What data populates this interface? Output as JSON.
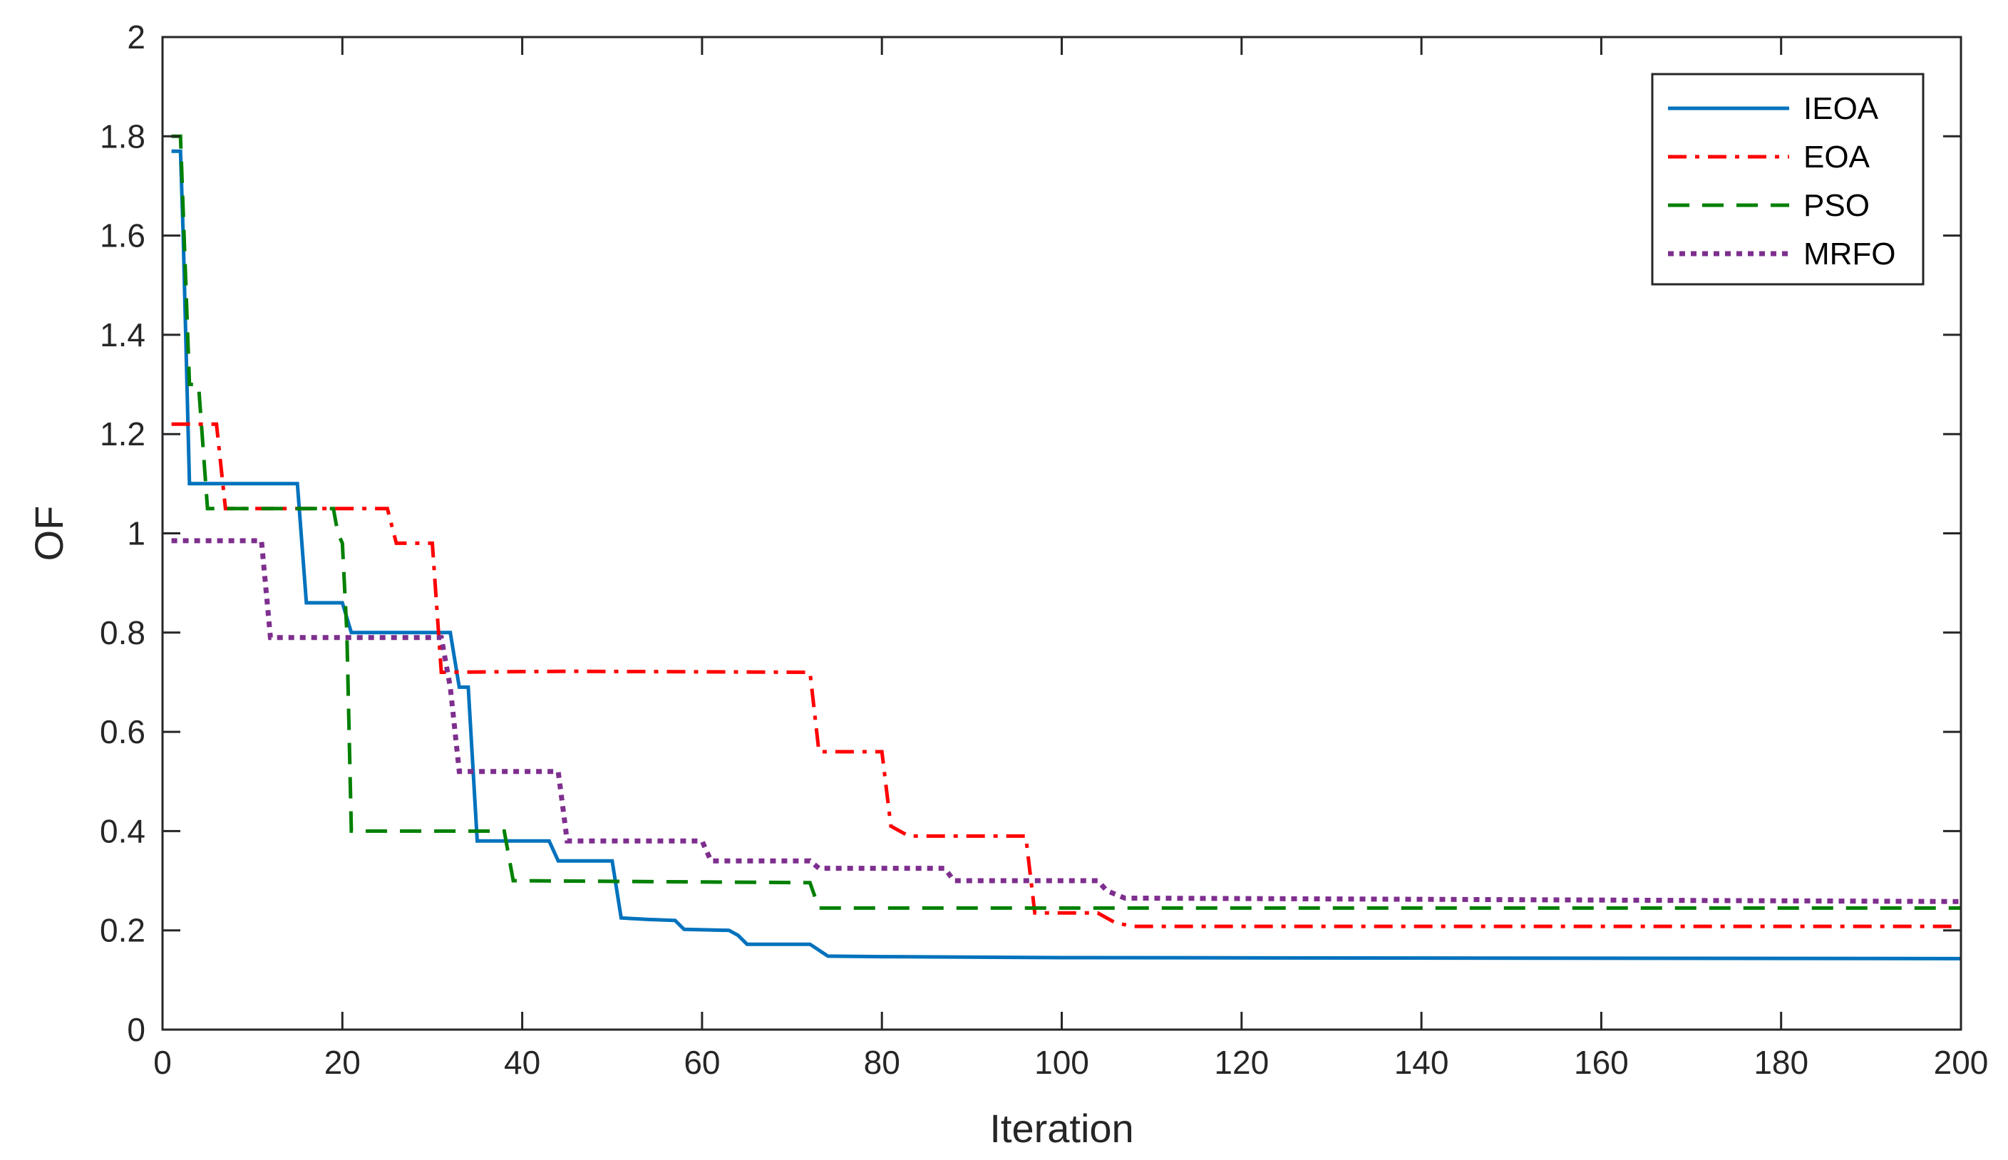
{
  "chart_data": {
    "type": "line",
    "title": "",
    "xlabel": "Iteration",
    "ylabel": "OF",
    "xlim": [
      0,
      200
    ],
    "ylim": [
      0,
      2
    ],
    "xticks": [
      0,
      20,
      40,
      60,
      80,
      100,
      120,
      140,
      160,
      180,
      200
    ],
    "yticks": [
      0,
      0.2,
      0.4,
      0.6,
      0.8,
      1,
      1.2,
      1.4,
      1.6,
      1.8,
      2
    ],
    "ytick_labels": [
      "0",
      "0.2",
      "0.4",
      "0.6",
      "0.8",
      "1",
      "1.2",
      "1.4",
      "1.6",
      "1.8",
      "2"
    ],
    "xtick_labels": [
      "0",
      "20",
      "40",
      "60",
      "80",
      "100",
      "120",
      "140",
      "160",
      "180",
      "200"
    ],
    "grid": false,
    "legend_position": "top-right",
    "series": [
      {
        "name": "IEOA",
        "color": "#0072bd",
        "dash": "solid",
        "points": [
          [
            1,
            1.77
          ],
          [
            2,
            1.77
          ],
          [
            2.3,
            1.6
          ],
          [
            3,
            1.1
          ],
          [
            15,
            1.1
          ],
          [
            16,
            0.86
          ],
          [
            20,
            0.86
          ],
          [
            21,
            0.8
          ],
          [
            32,
            0.8
          ],
          [
            33,
            0.69
          ],
          [
            34,
            0.69
          ],
          [
            35,
            0.38
          ],
          [
            43,
            0.38
          ],
          [
            44,
            0.34
          ],
          [
            50,
            0.34
          ],
          [
            51,
            0.225
          ],
          [
            54,
            0.222
          ],
          [
            57,
            0.22
          ],
          [
            58,
            0.202
          ],
          [
            63,
            0.2
          ],
          [
            64,
            0.19
          ],
          [
            65,
            0.172
          ],
          [
            72,
            0.172
          ],
          [
            74,
            0.148
          ],
          [
            80,
            0.147
          ],
          [
            100,
            0.145
          ],
          [
            200,
            0.143
          ]
        ]
      },
      {
        "name": "EOA",
        "color": "#ff0000",
        "dash": "dashdot",
        "points": [
          [
            1,
            1.22
          ],
          [
            6,
            1.22
          ],
          [
            7,
            1.05
          ],
          [
            25,
            1.05
          ],
          [
            26,
            0.98
          ],
          [
            30,
            0.98
          ],
          [
            31,
            0.72
          ],
          [
            45,
            0.722
          ],
          [
            72,
            0.72
          ],
          [
            73,
            0.56
          ],
          [
            80,
            0.56
          ],
          [
            81,
            0.41
          ],
          [
            83,
            0.39
          ],
          [
            96,
            0.39
          ],
          [
            97,
            0.235
          ],
          [
            104,
            0.235
          ],
          [
            106,
            0.215
          ],
          [
            108,
            0.208
          ],
          [
            200,
            0.208
          ]
        ]
      },
      {
        "name": "PSO",
        "color": "#008000",
        "dash": "dashed",
        "points": [
          [
            1,
            1.8
          ],
          [
            2,
            1.8
          ],
          [
            3,
            1.3
          ],
          [
            4,
            1.3
          ],
          [
            5,
            1.05
          ],
          [
            19,
            1.05
          ],
          [
            19.5,
            1.0
          ],
          [
            20,
            0.98
          ],
          [
            20.5,
            0.8
          ],
          [
            21,
            0.4
          ],
          [
            37,
            0.4
          ],
          [
            38,
            0.4
          ],
          [
            39,
            0.3
          ],
          [
            72,
            0.296
          ],
          [
            73,
            0.245
          ],
          [
            200,
            0.245
          ]
        ]
      },
      {
        "name": "MRFO",
        "color": "#7e2f8e",
        "dash": "dotted",
        "points": [
          [
            1,
            0.985
          ],
          [
            11,
            0.985
          ],
          [
            12,
            0.79
          ],
          [
            31,
            0.79
          ],
          [
            32,
            0.69
          ],
          [
            33,
            0.52
          ],
          [
            43,
            0.52
          ],
          [
            44,
            0.52
          ],
          [
            45,
            0.38
          ],
          [
            60,
            0.38
          ],
          [
            61,
            0.34
          ],
          [
            72,
            0.34
          ],
          [
            73,
            0.325
          ],
          [
            87,
            0.325
          ],
          [
            88,
            0.3
          ],
          [
            104,
            0.3
          ],
          [
            105,
            0.28
          ],
          [
            107,
            0.265
          ],
          [
            200,
            0.258
          ]
        ]
      }
    ]
  }
}
